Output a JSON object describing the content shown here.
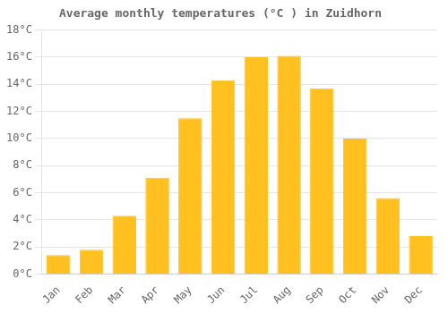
{
  "chart_data": {
    "type": "bar",
    "title": "Average monthly temperatures (°C ) in Zuidhorn",
    "categories": [
      "Jan",
      "Feb",
      "Mar",
      "Apr",
      "May",
      "Jun",
      "Jul",
      "Aug",
      "Sep",
      "Oct",
      "Nov",
      "Dec"
    ],
    "values": [
      1.4,
      1.8,
      4.3,
      7.1,
      11.5,
      14.3,
      16.0,
      16.1,
      13.7,
      10.0,
      5.6,
      2.8
    ],
    "color": "#FFC020",
    "ylim": [
      0,
      18
    ],
    "yticks": [
      {
        "value": 0,
        "label": "0°C"
      },
      {
        "value": 2,
        "label": "2°C"
      },
      {
        "value": 4,
        "label": "4°C"
      },
      {
        "value": 6,
        "label": "6°C"
      },
      {
        "value": 8,
        "label": "8°C"
      },
      {
        "value": 10,
        "label": "10°C"
      },
      {
        "value": 12,
        "label": "12°C"
      },
      {
        "value": 14,
        "label": "14°C"
      },
      {
        "value": 16,
        "label": "16°C"
      },
      {
        "value": 18,
        "label": "18°C"
      }
    ],
    "grid": true
  }
}
